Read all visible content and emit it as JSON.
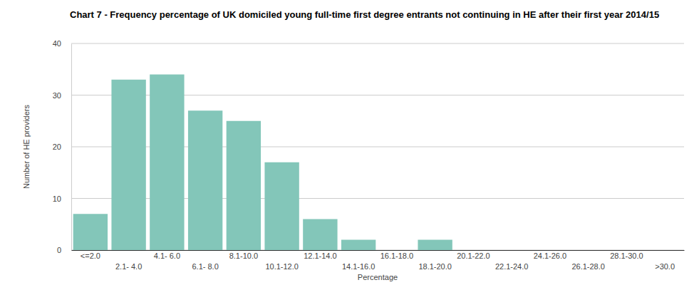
{
  "chart_data": {
    "type": "bar",
    "title": "Chart 7 - Frequency percentage of UK domiciled young full-time first degree entrants not continuing in HE after their first year 2014/15",
    "x_label": "Percentage",
    "y_label": "Number of HE providers",
    "categories": [
      "<=2.0",
      "2.1- 4.0",
      "4.1- 6.0",
      "6.1- 8.0",
      "8.1-10.0",
      "10.1-12.0",
      "12.1-14.0",
      "14.1-16.0",
      "16.1-18.0",
      "18.1-20.0",
      "20.1-22.0",
      "22.1-24.0",
      "24.1-26.0",
      "26.1-28.0",
      "28.1-30.0",
      ">30.0"
    ],
    "values": [
      7,
      33,
      34,
      27,
      25,
      17,
      6,
      2,
      0,
      2,
      0,
      0,
      0,
      0,
      0,
      0
    ],
    "color": "#83c6b9",
    "ylim": [
      0,
      40
    ],
    "yticks": [
      0,
      10,
      20,
      30,
      40
    ],
    "grid": true
  }
}
